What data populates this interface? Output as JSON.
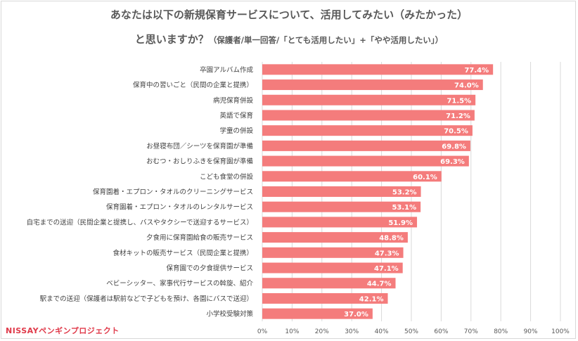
{
  "chart_data": {
    "type": "bar",
    "orientation": "horizontal",
    "title": {
      "line1": "あなたは以下の新規保育サービスについて、活用してみたい（みたかった）",
      "line2_main": "と思いますか？",
      "line2_note": "（保護者/単一回答/「とても活用したい」+「やや活用したい」）"
    },
    "categories": [
      "卒園アルバム作成",
      "保育中の習いごと（民間の企業と提携）",
      "病児保育併設",
      "英語で保育",
      "学童の併設",
      "お昼寝布団／シーツを保育園が準備",
      "おむつ・おしりふきを保育園が準備",
      "こども食堂の併設",
      "保育園着・エプロン・タオルのクリーニングサービス",
      "保育園着・エプロン・タオルのレンタルサービス",
      "自宅までの送迎（民間企業と提携し、バスやタクシーで送迎するサービス）",
      "夕食用に保育園給食の販売サービス",
      "食材キットの販売サービス（民間企業と提携）",
      "保育園での夕食提供サービス",
      "ベビーシッター、家事代行サービスの斡旋、紹介",
      "駅までの送迎（保護者は駅前などで子どもを預け、各園にバスで送迎）",
      "小学校受験対策"
    ],
    "values": [
      77.4,
      74.0,
      71.5,
      71.2,
      70.5,
      69.8,
      69.3,
      60.1,
      53.2,
      53.1,
      51.9,
      48.8,
      47.3,
      47.1,
      44.7,
      42.1,
      37.0
    ],
    "value_labels": [
      "77.4%",
      "74.0%",
      "71.5%",
      "71.2%",
      "70.5%",
      "69.8%",
      "69.3%",
      "60.1%",
      "53.2%",
      "53.1%",
      "51.9%",
      "48.8%",
      "47.3%",
      "47.1%",
      "44.7%",
      "42.1%",
      "37.0%"
    ],
    "xlim": [
      0,
      100
    ],
    "xticks": [
      "0%",
      "10%",
      "20%",
      "30%",
      "40%",
      "50%",
      "60%",
      "70%",
      "80%",
      "90%",
      "100%"
    ],
    "grid": true,
    "bar_color": "#f47c7c",
    "label_color": "#ffffff"
  },
  "branding": {
    "logo_text": "NISSAYペンギンプロジェクト"
  }
}
